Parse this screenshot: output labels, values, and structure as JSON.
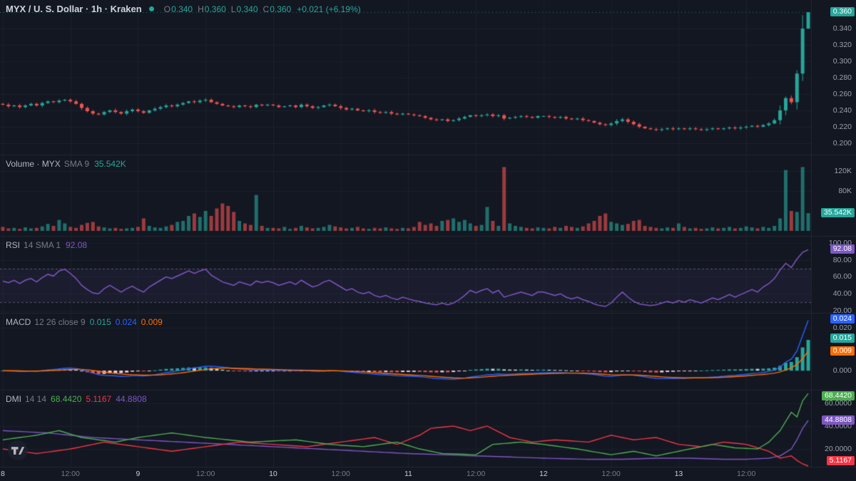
{
  "colors": {
    "bg": "#131722",
    "up": "#26a69a",
    "down": "#ef5350",
    "blue": "#2962ff",
    "orange": "#ff6d00",
    "purple": "#7e57c2",
    "green": "#4caf50",
    "red": "#f23645",
    "text": "#d1d4dc",
    "muted": "#787b86",
    "axis_text": "#9aa0aa",
    "grid": "rgba(134,150,170,0.07)",
    "sep": "#1f2530"
  },
  "header": {
    "symbol": "MYX / U. S. Dollar · 1h · Kraken",
    "ohlc": [
      {
        "k": "O",
        "v": "0.340"
      },
      {
        "k": "H",
        "v": "0.360"
      },
      {
        "k": "L",
        "v": "0.340"
      },
      {
        "k": "C",
        "v": "0.360"
      }
    ],
    "change": "+0.021 (+6.19%)"
  },
  "pane_headers": {
    "volume": {
      "title": "Volume · MYX",
      "params": "SMA 9",
      "value": "35.542K"
    },
    "rsi": {
      "title": "RSI",
      "params": "14 SMA 1",
      "value": "92.08"
    },
    "macd": {
      "title": "MACD",
      "params": "12 26 close 9",
      "values": [
        {
          "t": "0.015",
          "c": "#26a69a"
        },
        {
          "t": "0.024",
          "c": "#2962ff"
        },
        {
          "t": "0.009",
          "c": "#ff6d00"
        }
      ]
    },
    "dmi": {
      "title": "DMI",
      "params": "14 14",
      "values": [
        {
          "t": "68.4420",
          "c": "#4caf50"
        },
        {
          "t": "5.1167",
          "c": "#f23645"
        },
        {
          "t": "44.8808",
          "c": "#7e57c2"
        }
      ]
    }
  },
  "axes": {
    "price": {
      "labels": [
        {
          "t": "0.340",
          "v": 0.34
        },
        {
          "t": "0.320",
          "v": 0.32
        },
        {
          "t": "0.300",
          "v": 0.3
        },
        {
          "t": "0.280",
          "v": 0.28
        },
        {
          "t": "0.260",
          "v": 0.26
        },
        {
          "t": "0.240",
          "v": 0.24
        },
        {
          "t": "0.220",
          "v": 0.22
        },
        {
          "t": "0.200",
          "v": 0.2
        }
      ],
      "badges": [
        {
          "t": "0.360",
          "v": 0.36,
          "bg": "#26a69a"
        }
      ]
    },
    "volume": {
      "labels": [
        {
          "t": "120K",
          "v": 120
        },
        {
          "t": "80K",
          "v": 80
        }
      ],
      "badges": [
        {
          "t": "35.542K",
          "v": 35.542,
          "bg": "#26a69a"
        }
      ]
    },
    "rsi": {
      "labels": [
        {
          "t": "100.00",
          "v": 100
        },
        {
          "t": "80.00",
          "v": 80
        },
        {
          "t": "60.00",
          "v": 60
        },
        {
          "t": "40.00",
          "v": 40
        },
        {
          "t": "20.00",
          "v": 20
        }
      ],
      "badges": [
        {
          "t": "92.08",
          "v": 92.08,
          "bg": "#7e57c2"
        }
      ]
    },
    "macd": {
      "labels": [
        {
          "t": "0.020",
          "v": 0.02
        },
        {
          "t": "0.000",
          "v": 0
        }
      ],
      "badges": [
        {
          "t": "0.024",
          "v": 0.024,
          "bg": "#2962ff"
        },
        {
          "t": "0.015",
          "v": 0.015,
          "bg": "#26a69a"
        },
        {
          "t": "0.009",
          "v": 0.009,
          "bg": "#ff6d00"
        }
      ]
    },
    "dmi": {
      "labels": [
        {
          "t": "60.0000",
          "v": 60
        },
        {
          "t": "40.0000",
          "v": 40
        },
        {
          "t": "20.0000",
          "v": 20
        }
      ],
      "badges": [
        {
          "t": "68.4420",
          "v": 68.442,
          "bg": "#4caf50"
        },
        {
          "t": "44.8808",
          "v": 44.8808,
          "bg": "#7e57c2"
        },
        {
          "t": "5.1167",
          "v": 5.1167,
          "bg": "#f23645"
        }
      ]
    }
  },
  "time_axis": {
    "labels": [
      {
        "i": 0,
        "t": "8",
        "major": true
      },
      {
        "i": 12,
        "t": "12:00",
        "major": false
      },
      {
        "i": 24,
        "t": "9",
        "major": true
      },
      {
        "i": 36,
        "t": "12:00",
        "major": false
      },
      {
        "i": 48,
        "t": "10",
        "major": true
      },
      {
        "i": 60,
        "t": "12:00",
        "major": false
      },
      {
        "i": 72,
        "t": "11",
        "major": true
      },
      {
        "i": 84,
        "t": "12:00",
        "major": false
      },
      {
        "i": 96,
        "t": "12",
        "major": true
      },
      {
        "i": 108,
        "t": "12:00",
        "major": false
      },
      {
        "i": 120,
        "t": "13",
        "major": true
      },
      {
        "i": 132,
        "t": "12:00",
        "major": false
      }
    ]
  },
  "logo": {
    "name": "TradingView"
  },
  "chart_data": [
    {
      "id": "price",
      "type": "candlestick",
      "symbol": "MYX/USD",
      "exchange": "Kraken",
      "timeframe": "1h",
      "ylim": [
        0.185,
        0.375
      ],
      "first_open": 0.248,
      "current_price": 0.36,
      "last_ohlc": {
        "o": 0.34,
        "h": 0.36,
        "l": 0.34,
        "c": 0.36
      },
      "open_equals_previous_close": true,
      "closes": [
        0.247,
        0.245,
        0.246,
        0.244,
        0.246,
        0.248,
        0.246,
        0.249,
        0.251,
        0.25,
        0.252,
        0.253,
        0.251,
        0.248,
        0.243,
        0.239,
        0.236,
        0.235,
        0.238,
        0.24,
        0.238,
        0.236,
        0.239,
        0.241,
        0.239,
        0.237,
        0.24,
        0.242,
        0.244,
        0.246,
        0.245,
        0.247,
        0.249,
        0.251,
        0.25,
        0.252,
        0.253,
        0.25,
        0.248,
        0.246,
        0.245,
        0.244,
        0.246,
        0.245,
        0.244,
        0.247,
        0.246,
        0.247,
        0.246,
        0.244,
        0.245,
        0.246,
        0.244,
        0.247,
        0.245,
        0.243,
        0.244,
        0.246,
        0.247,
        0.245,
        0.243,
        0.241,
        0.242,
        0.24,
        0.239,
        0.24,
        0.238,
        0.237,
        0.238,
        0.236,
        0.235,
        0.236,
        0.235,
        0.234,
        0.233,
        0.231,
        0.229,
        0.228,
        0.229,
        0.227,
        0.228,
        0.23,
        0.232,
        0.234,
        0.233,
        0.234,
        0.235,
        0.233,
        0.234,
        0.23,
        0.231,
        0.232,
        0.233,
        0.232,
        0.231,
        0.233,
        0.233,
        0.232,
        0.231,
        0.232,
        0.23,
        0.229,
        0.23,
        0.228,
        0.227,
        0.225,
        0.223,
        0.222,
        0.224,
        0.227,
        0.229,
        0.226,
        0.223,
        0.22,
        0.218,
        0.217,
        0.216,
        0.217,
        0.218,
        0.217,
        0.218,
        0.217,
        0.218,
        0.217,
        0.216,
        0.217,
        0.218,
        0.217,
        0.218,
        0.219,
        0.218,
        0.219,
        0.22,
        0.221,
        0.22,
        0.222,
        0.224,
        0.228,
        0.24,
        0.255,
        0.25,
        0.285,
        0.34,
        0.36
      ]
    },
    {
      "id": "volume",
      "type": "bar",
      "unit": "K",
      "sma_period": 9,
      "current": 35.542,
      "ylim": [
        0,
        140
      ],
      "values": [
        8,
        5,
        6,
        4,
        7,
        5,
        6,
        9,
        14,
        10,
        22,
        15,
        8,
        6,
        12,
        16,
        18,
        9,
        7,
        5,
        6,
        4,
        5,
        6,
        8,
        25,
        10,
        7,
        6,
        9,
        12,
        18,
        20,
        30,
        35,
        28,
        40,
        30,
        45,
        55,
        50,
        38,
        20,
        15,
        12,
        72,
        10,
        6,
        6,
        5,
        8,
        4,
        6,
        10,
        7,
        5,
        6,
        8,
        12,
        9,
        7,
        5,
        6,
        8,
        5,
        4,
        6,
        5,
        7,
        5,
        4,
        6,
        5,
        8,
        18,
        12,
        15,
        10,
        20,
        22,
        25,
        18,
        22,
        15,
        10,
        12,
        48,
        20,
        10,
        128,
        15,
        10,
        8,
        6,
        5,
        7,
        6,
        5,
        8,
        6,
        10,
        8,
        6,
        9,
        15,
        20,
        30,
        35,
        18,
        15,
        12,
        14,
        20,
        22,
        10,
        8,
        6,
        5,
        7,
        6,
        15,
        8,
        5,
        6,
        4,
        5,
        7,
        5,
        6,
        8,
        5,
        6,
        9,
        7,
        5,
        8,
        6,
        10,
        25,
        122,
        40,
        38,
        128,
        35.542
      ]
    },
    {
      "id": "rsi",
      "type": "line",
      "period": 14,
      "sma": 1,
      "current": 92.08,
      "ylim": [
        16.6,
        107.6
      ],
      "bands": [
        70,
        30
      ],
      "values": [
        55,
        53,
        56,
        52,
        56,
        58,
        54,
        59,
        63,
        61,
        67,
        69,
        64,
        58,
        50,
        45,
        41,
        40,
        46,
        50,
        46,
        42,
        46,
        49,
        45,
        42,
        48,
        52,
        56,
        60,
        58,
        61,
        64,
        67,
        64,
        67,
        69,
        62,
        58,
        54,
        52,
        50,
        54,
        52,
        50,
        55,
        53,
        55,
        53,
        50,
        52,
        54,
        51,
        56,
        52,
        48,
        50,
        54,
        56,
        52,
        48,
        44,
        46,
        42,
        40,
        42,
        38,
        36,
        38,
        35,
        33,
        36,
        34,
        32,
        31,
        29,
        28,
        27,
        29,
        27,
        29,
        33,
        38,
        44,
        41,
        44,
        46,
        41,
        44,
        36,
        38,
        40,
        42,
        40,
        38,
        42,
        42,
        40,
        38,
        40,
        36,
        34,
        36,
        33,
        31,
        28,
        26,
        25,
        29,
        36,
        42,
        36,
        31,
        28,
        27,
        26,
        27,
        29,
        31,
        29,
        32,
        30,
        33,
        31,
        29,
        32,
        35,
        33,
        36,
        39,
        36,
        39,
        42,
        45,
        42,
        48,
        52,
        58,
        68,
        76,
        71,
        81,
        89,
        92.08
      ]
    },
    {
      "id": "macd",
      "type": "macd",
      "fast": 12,
      "slow": 26,
      "source": "close",
      "signal_period": 9,
      "current": {
        "macd": 0.024,
        "signal": 0.009,
        "histogram": 0.015
      },
      "ylim": [
        -0.0093,
        0.0267
      ],
      "derived_from_closes": true
    },
    {
      "id": "dmi",
      "type": "line",
      "period": 14,
      "smoothing": 14,
      "ylim": [
        4.5,
        71
      ],
      "current": {
        "plus_di": 68.442,
        "minus_di": 5.1167,
        "adx": 44.8808
      },
      "series": [
        {
          "name": "plus_di",
          "color_key": "green",
          "points": [
            [
              0,
              28
            ],
            [
              6,
              32
            ],
            [
              10,
              36
            ],
            [
              14,
              30
            ],
            [
              20,
              26
            ],
            [
              24,
              30
            ],
            [
              30,
              34
            ],
            [
              36,
              30
            ],
            [
              44,
              26
            ],
            [
              52,
              28
            ],
            [
              58,
              24
            ],
            [
              64,
              22
            ],
            [
              70,
              26
            ],
            [
              74,
              20
            ],
            [
              78,
              16
            ],
            [
              84,
              15
            ],
            [
              87,
              24
            ],
            [
              92,
              26
            ],
            [
              96,
              24
            ],
            [
              102,
              20
            ],
            [
              108,
              15
            ],
            [
              112,
              18
            ],
            [
              116,
              14
            ],
            [
              122,
              20
            ],
            [
              126,
              24
            ],
            [
              130,
              21
            ],
            [
              134,
              20
            ],
            [
              136,
              26
            ],
            [
              138,
              36
            ],
            [
              140,
              52
            ],
            [
              141,
              48
            ],
            [
              142,
              62
            ],
            [
              143,
              68.442
            ]
          ]
        },
        {
          "name": "minus_di",
          "color_key": "red",
          "points": [
            [
              0,
              20
            ],
            [
              6,
              16
            ],
            [
              12,
              20
            ],
            [
              18,
              26
            ],
            [
              24,
              22
            ],
            [
              30,
              18
            ],
            [
              36,
              22
            ],
            [
              42,
              26
            ],
            [
              48,
              24
            ],
            [
              54,
              22
            ],
            [
              60,
              26
            ],
            [
              66,
              30
            ],
            [
              70,
              24
            ],
            [
              74,
              32
            ],
            [
              76,
              38
            ],
            [
              80,
              40
            ],
            [
              83,
              36
            ],
            [
              86,
              40
            ],
            [
              90,
              30
            ],
            [
              94,
              26
            ],
            [
              98,
              28
            ],
            [
              104,
              26
            ],
            [
              108,
              32
            ],
            [
              112,
              28
            ],
            [
              116,
              30
            ],
            [
              120,
              24
            ],
            [
              124,
              22
            ],
            [
              128,
              26
            ],
            [
              132,
              24
            ],
            [
              136,
              18
            ],
            [
              138,
              12
            ],
            [
              140,
              14
            ],
            [
              141,
              10
            ],
            [
              142,
              7
            ],
            [
              143,
              5.1167
            ]
          ]
        },
        {
          "name": "adx",
          "color_key": "purple",
          "points": [
            [
              0,
              36
            ],
            [
              8,
              34
            ],
            [
              16,
              30
            ],
            [
              24,
              28
            ],
            [
              32,
              26
            ],
            [
              40,
              24
            ],
            [
              48,
              22
            ],
            [
              56,
              20
            ],
            [
              64,
              18
            ],
            [
              72,
              16
            ],
            [
              78,
              15
            ],
            [
              84,
              14
            ],
            [
              90,
              13
            ],
            [
              96,
              12
            ],
            [
              104,
              11
            ],
            [
              110,
              11
            ],
            [
              116,
              12
            ],
            [
              122,
              12
            ],
            [
              128,
              11
            ],
            [
              132,
              11
            ],
            [
              136,
              12
            ],
            [
              138,
              14
            ],
            [
              140,
              20
            ],
            [
              141,
              28
            ],
            [
              142,
              38
            ],
            [
              143,
              44.8808
            ]
          ]
        }
      ]
    }
  ]
}
